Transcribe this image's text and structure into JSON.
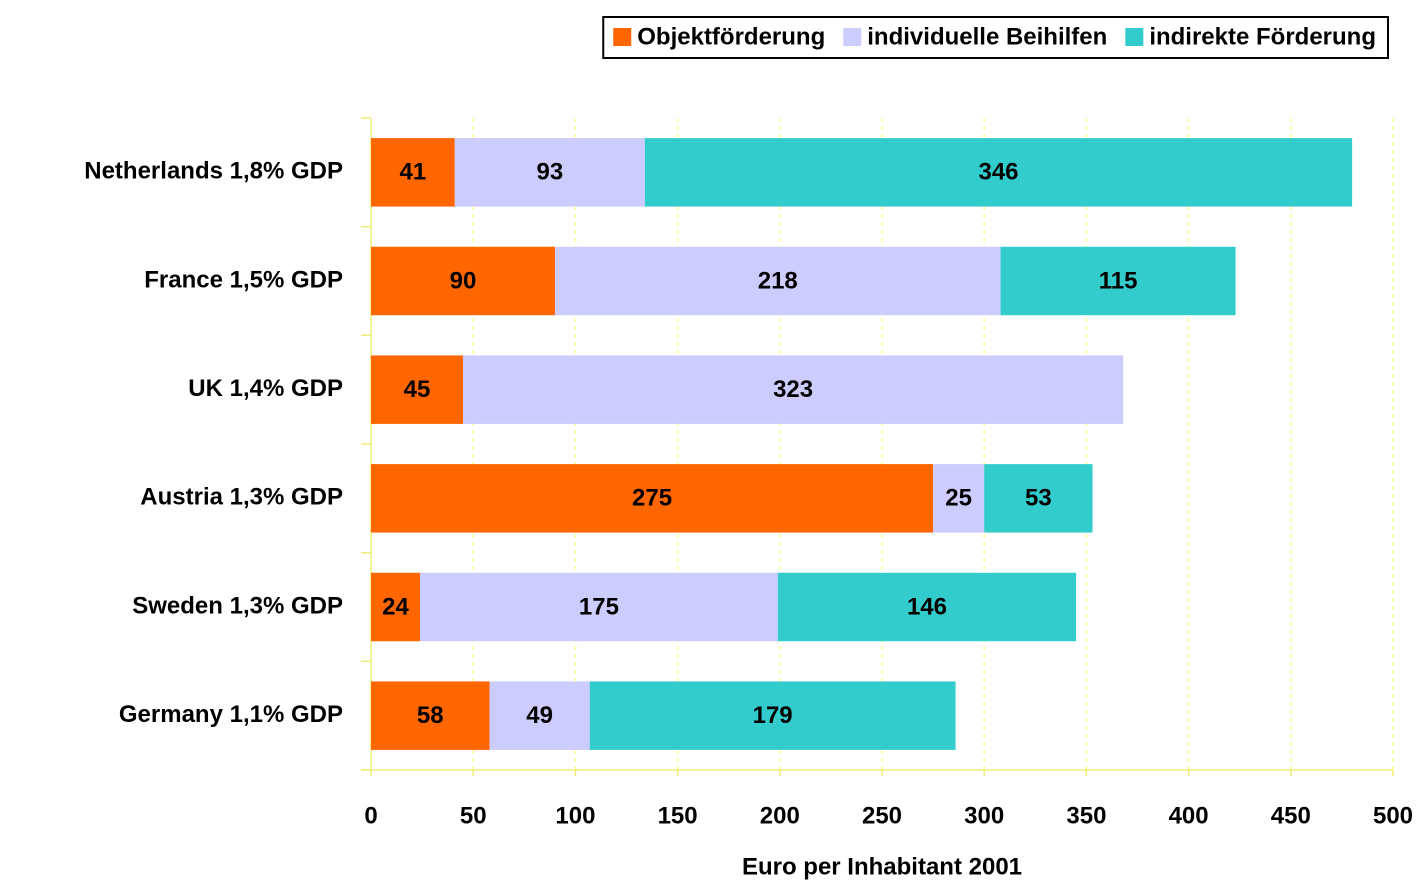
{
  "chart_data": {
    "type": "bar",
    "orientation": "horizontal",
    "stacked": true,
    "xlabel": "Euro per Inhabitant 2001",
    "categories": [
      "Netherlands 1,8% GDP",
      "France 1,5% GDP",
      "UK 1,4% GDP",
      "Austria 1,3% GDP",
      "Sweden 1,3% GDP",
      "Germany 1,1% GDP"
    ],
    "series": [
      {
        "name": "Objektförderung",
        "color": "#ff6600",
        "values": [
          41,
          90,
          45,
          275,
          24,
          58
        ]
      },
      {
        "name": "individuelle Beihilfen",
        "color": "#ccccff",
        "values": [
          93,
          218,
          323,
          25,
          175,
          49
        ]
      },
      {
        "name": "indirekte Förderung",
        "color": "#33cccc",
        "values": [
          346,
          115,
          null,
          53,
          146,
          179
        ]
      }
    ],
    "xlim": [
      0,
      500
    ],
    "xticks": [
      0,
      50,
      100,
      150,
      200,
      250,
      300,
      350,
      400,
      450,
      500
    ],
    "grid": true,
    "legend": "top-right"
  }
}
